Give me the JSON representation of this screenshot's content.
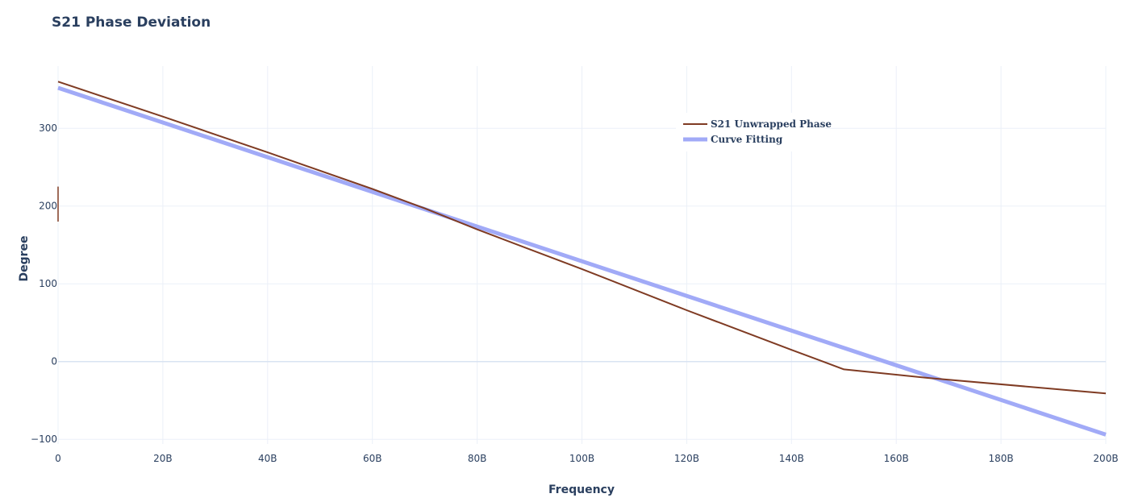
{
  "chart_data": {
    "type": "line",
    "title": "S21 Phase Deviation",
    "xlabel": "Frequency",
    "ylabel": "Degree",
    "xlim": [
      0,
      200000000000
    ],
    "ylim": [
      -106,
      380
    ],
    "x_ticks": [
      {
        "value": 0,
        "label": "0"
      },
      {
        "value": 20000000000,
        "label": "20B"
      },
      {
        "value": 40000000000,
        "label": "40B"
      },
      {
        "value": 60000000000,
        "label": "60B"
      },
      {
        "value": 80000000000,
        "label": "80B"
      },
      {
        "value": 100000000000,
        "label": "100B"
      },
      {
        "value": 120000000000,
        "label": "120B"
      },
      {
        "value": 140000000000,
        "label": "140B"
      },
      {
        "value": 160000000000,
        "label": "160B"
      },
      {
        "value": 180000000000,
        "label": "180B"
      },
      {
        "value": 200000000000,
        "label": "200B"
      }
    ],
    "y_ticks": [
      {
        "value": -100,
        "label": "−100"
      },
      {
        "value": 0,
        "label": "0"
      },
      {
        "value": 100,
        "label": "100"
      },
      {
        "value": 200,
        "label": "200"
      },
      {
        "value": 300,
        "label": "300"
      }
    ],
    "grid": true,
    "legend_position": "top-right",
    "series": [
      {
        "name": "S21 Unwrapped Phase",
        "color": "#7f3b23",
        "line_width": 2,
        "x": [
          0,
          20000000000,
          40000000000,
          60000000000,
          70000000000,
          80000000000,
          100000000000,
          120000000000,
          140000000000,
          150000000000,
          166000000000,
          200000000000
        ],
        "y": [
          360,
          315,
          269,
          222,
          197,
          170,
          119,
          66,
          15,
          -10,
          -21,
          -41
        ]
      },
      {
        "name": "Curve Fitting",
        "color": "#a1aaf7",
        "line_width": 5,
        "x": [
          0,
          200000000000
        ],
        "y": [
          352,
          -94
        ]
      }
    ],
    "annotations": [
      {
        "type": "vertical-segment",
        "x": 0,
        "y_from": 180,
        "y_to": 225,
        "color": "#7f3b23"
      }
    ]
  }
}
